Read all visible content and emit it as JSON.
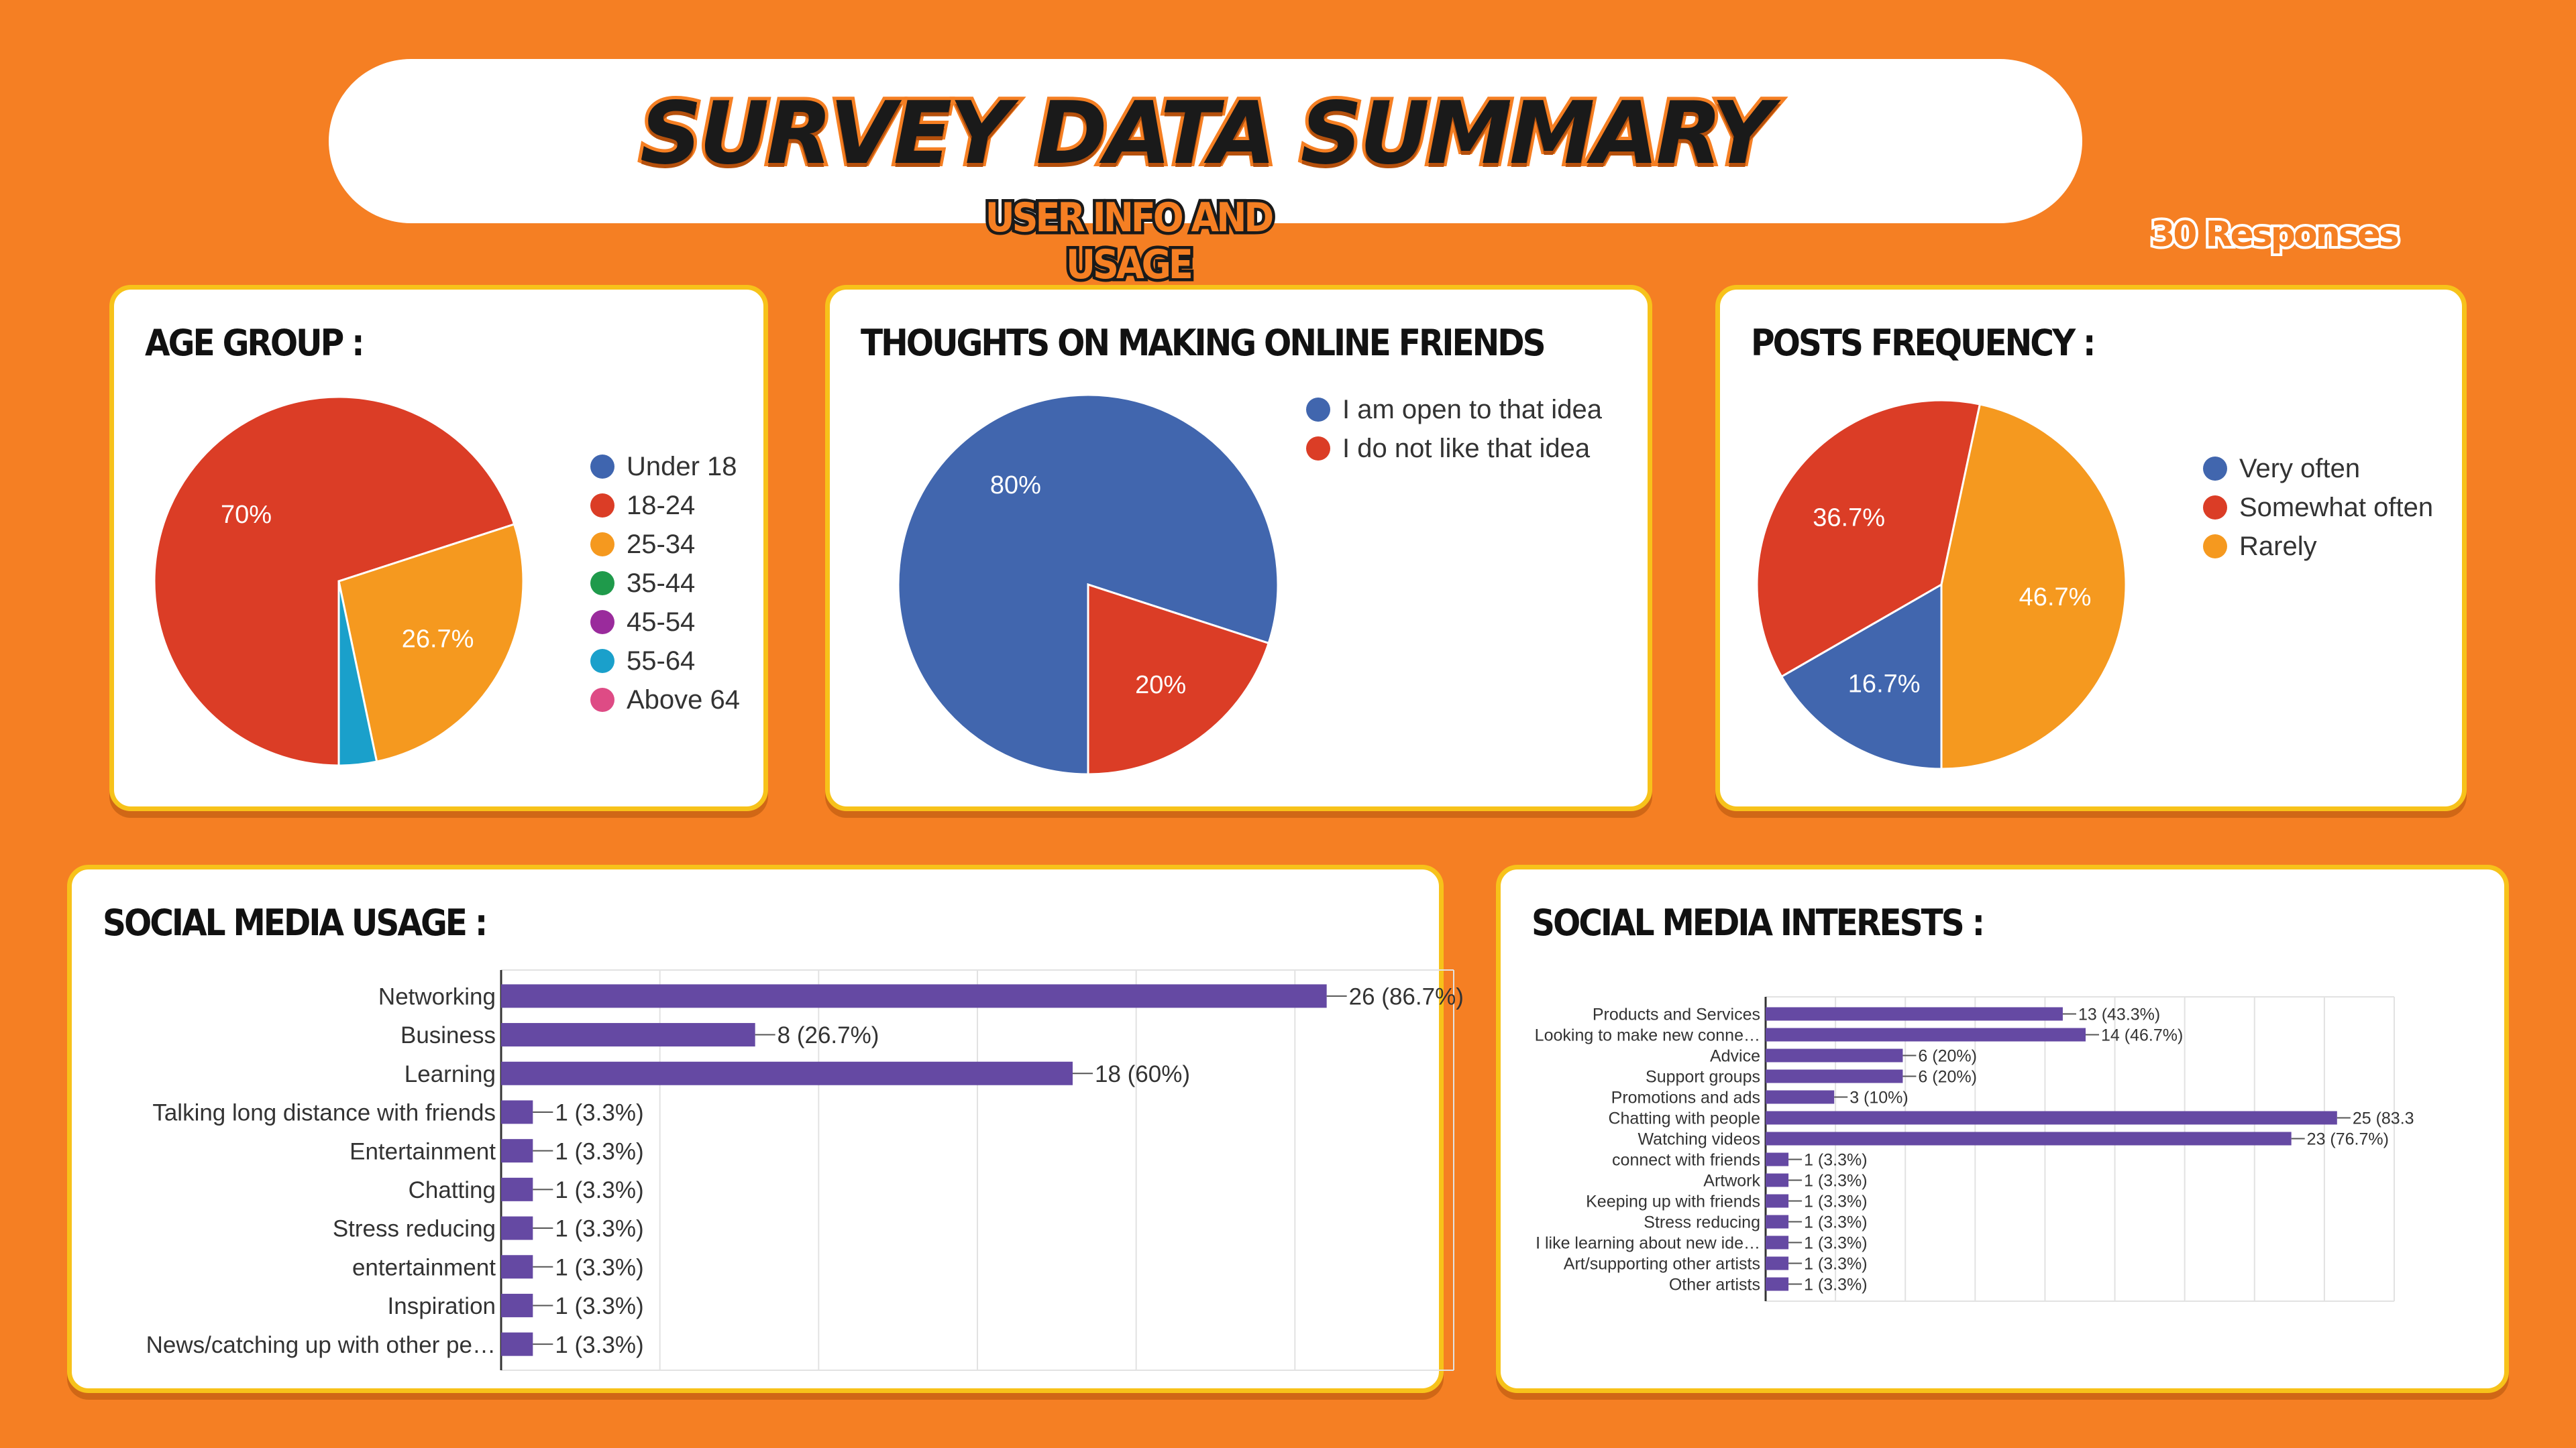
{
  "header": {
    "title": "SURVEY DATA SUMMARY",
    "subtitle": "USER INFO AND USAGE",
    "responses": "30 Responses"
  },
  "chart_data": [
    {
      "type": "pie",
      "title": "AGE GROUP :",
      "labels": [
        "Under 18",
        "18-24",
        "25-34",
        "35-44",
        "45-54",
        "55-64",
        "Above 64"
      ],
      "values": [
        0,
        70,
        26.7,
        0,
        0,
        3.3,
        0
      ],
      "slice_labels": [
        "",
        "70%",
        "26.7%",
        "",
        "",
        "",
        ""
      ],
      "colors": [
        "#3f65af",
        "#db3d26",
        "#f5991f",
        "#1f9a4b",
        "#9a2b9c",
        "#1aa0cb",
        "#de4b85"
      ],
      "legend": "right"
    },
    {
      "type": "pie",
      "title": "THOUGHTS ON MAKING ONLINE FRIENDS",
      "labels": [
        "I am open to that idea",
        "I do not like that idea"
      ],
      "values": [
        80,
        20
      ],
      "slice_labels": [
        "80%",
        "20%"
      ],
      "colors": [
        "#4166ae",
        "#db3d26"
      ],
      "legend": "top-right"
    },
    {
      "type": "pie",
      "title": "POSTS FREQUENCY :",
      "labels": [
        "Very often",
        "Somewhat often",
        "Rarely"
      ],
      "values": [
        16.7,
        36.7,
        46.7
      ],
      "slice_labels": [
        "16.7%",
        "36.7%",
        "46.7%"
      ],
      "colors": [
        "#4166ae",
        "#db3d26",
        "#f5991f"
      ],
      "legend": "right"
    },
    {
      "type": "bar",
      "orientation": "horizontal",
      "title": "SOCIAL MEDIA USAGE :",
      "categories": [
        "Networking",
        "Business",
        "Learning",
        "Talking long distance with friends",
        "Entertainment",
        "Chatting",
        "Stress reducing",
        "entertainment",
        "Inspiration",
        "News/catching up with other pe…"
      ],
      "values": [
        26,
        8,
        18,
        1,
        1,
        1,
        1,
        1,
        1,
        1
      ],
      "value_labels": [
        "26 (86.7%)",
        "8 (26.7%)",
        "18 (60%)",
        "1 (3.3%)",
        "1 (3.3%)",
        "1 (3.3%)",
        "1 (3.3%)",
        "1 (3.3%)",
        "1 (3.3%)",
        "1 (3.3%)"
      ],
      "xlim": [
        0,
        30
      ],
      "grid": true,
      "color": "#6549a3"
    },
    {
      "type": "bar",
      "orientation": "horizontal",
      "title": "SOCIAL MEDIA INTERESTS :",
      "categories": [
        "Products and Services",
        "Looking to make new conne…",
        "Advice",
        "Support groups",
        "Promotions and ads",
        "Chatting with people",
        "Watching videos",
        "connect with friends",
        "Artwork",
        "Keeping up with friends",
        "Stress reducing",
        "I like learning about new ide…",
        "Art/supporting other artists",
        "Other artists"
      ],
      "values": [
        13,
        14,
        6,
        6,
        3,
        25,
        23,
        1,
        1,
        1,
        1,
        1,
        1,
        1
      ],
      "value_labels": [
        "13 (43.3%)",
        "14 (46.7%)",
        "6 (20%)",
        "6 (20%)",
        "3 (10%)",
        "25 (83.3",
        "23 (76.7%)",
        "1 (3.3%)",
        "1 (3.3%)",
        "1 (3.3%)",
        "1 (3.3%)",
        "1 (3.3%)",
        "1 (3.3%)",
        "1 (3.3%)"
      ],
      "xlim": [
        0,
        27.5
      ],
      "grid": true,
      "color": "#6549a3"
    }
  ]
}
